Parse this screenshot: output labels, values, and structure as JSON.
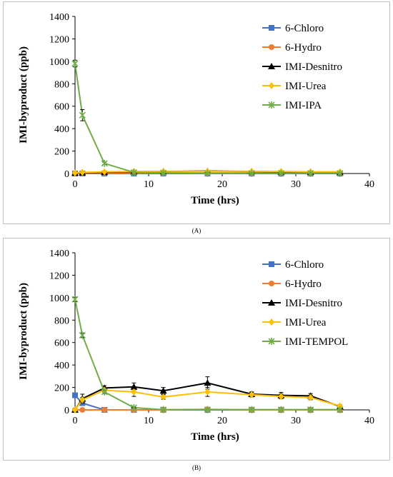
{
  "captions": [
    "(A)",
    "(B)"
  ],
  "chart_data": [
    {
      "type": "line",
      "xlabel": "Time (hrs)",
      "ylabel": "IMI-byproduct (ppb)",
      "xlim": [
        0,
        40
      ],
      "ylim": [
        0,
        1400
      ],
      "xticks": [
        0,
        10,
        20,
        30,
        40
      ],
      "yticks": [
        0,
        200,
        400,
        600,
        800,
        1000,
        1200,
        1400
      ],
      "grid": false,
      "legend": "top-right",
      "series": [
        {
          "name": "6-Chloro",
          "color": "#4472c4",
          "marker": "square",
          "x": [
            0,
            1,
            4,
            8,
            12,
            18,
            24,
            28,
            32,
            36
          ],
          "y": [
            0,
            0,
            0,
            0,
            0,
            0,
            0,
            0,
            0,
            0
          ]
        },
        {
          "name": "6-Hydro",
          "color": "#ed7d31",
          "marker": "circle",
          "x": [
            0,
            1,
            4,
            8,
            12,
            18,
            24,
            28,
            32,
            36
          ],
          "y": [
            0,
            2,
            3,
            5,
            5,
            5,
            5,
            5,
            5,
            5
          ]
        },
        {
          "name": "IMI-Desnitro",
          "color": "#000000",
          "marker": "triangle",
          "x": [
            0,
            1,
            4,
            8,
            12,
            18,
            24,
            28,
            32,
            36
          ],
          "y": [
            5,
            8,
            12,
            15,
            18,
            22,
            18,
            15,
            12,
            10
          ]
        },
        {
          "name": "IMI-Urea",
          "color": "#ffc000",
          "marker": "diamond",
          "x": [
            0,
            1,
            4,
            8,
            12,
            18,
            24,
            28,
            32,
            36
          ],
          "y": [
            5,
            10,
            15,
            18,
            20,
            20,
            20,
            18,
            15,
            15
          ]
        },
        {
          "name": "IMI-IPA",
          "color": "#70ad47",
          "marker": "star",
          "x": [
            0,
            1,
            4,
            8,
            12,
            18,
            24,
            28,
            32,
            36
          ],
          "y": [
            980,
            520,
            90,
            10,
            5,
            2,
            2,
            2,
            2,
            2
          ],
          "err": [
            30,
            50,
            10,
            0,
            0,
            0,
            0,
            0,
            0,
            0
          ]
        }
      ]
    },
    {
      "type": "line",
      "xlabel": "Time (hrs)",
      "ylabel": "IMI-byproduct (ppb)",
      "xlim": [
        0,
        40
      ],
      "ylim": [
        0,
        1400
      ],
      "xticks": [
        0,
        10,
        20,
        30,
        40
      ],
      "yticks": [
        0,
        200,
        400,
        600,
        800,
        1000,
        1200,
        1400
      ],
      "grid": false,
      "legend": "top-right",
      "series": [
        {
          "name": "6-Chloro",
          "color": "#4472c4",
          "marker": "square",
          "x": [
            0,
            1,
            4,
            8,
            12,
            18,
            24,
            28,
            32,
            36
          ],
          "y": [
            130,
            60,
            0,
            0,
            0,
            0,
            0,
            0,
            0,
            0
          ]
        },
        {
          "name": "6-Hydro",
          "color": "#ed7d31",
          "marker": "circle",
          "x": [
            0,
            1,
            4,
            8,
            12,
            18,
            24,
            28,
            32,
            36
          ],
          "y": [
            0,
            0,
            0,
            0,
            0,
            5,
            0,
            0,
            0,
            0
          ]
        },
        {
          "name": "IMI-Desnitro",
          "color": "#000000",
          "marker": "triangle",
          "x": [
            0,
            1,
            4,
            8,
            12,
            18,
            24,
            28,
            32,
            36
          ],
          "y": [
            0,
            100,
            195,
            205,
            170,
            240,
            140,
            130,
            125,
            30
          ],
          "err": [
            0,
            40,
            20,
            35,
            30,
            55,
            20,
            25,
            20,
            10
          ]
        },
        {
          "name": "IMI-Urea",
          "color": "#ffc000",
          "marker": "diamond",
          "x": [
            0,
            1,
            4,
            8,
            12,
            18,
            24,
            28,
            32,
            36
          ],
          "y": [
            0,
            90,
            175,
            160,
            115,
            160,
            135,
            120,
            110,
            35
          ],
          "err": [
            0,
            20,
            15,
            40,
            20,
            40,
            20,
            20,
            20,
            10
          ]
        },
        {
          "name": "IMI-TEMPOL",
          "color": "#70ad47",
          "marker": "star",
          "x": [
            0,
            1,
            4,
            8,
            12,
            18,
            24,
            28,
            32,
            36
          ],
          "y": [
            985,
            665,
            160,
            20,
            2,
            2,
            2,
            2,
            2,
            2
          ],
          "err": [
            20,
            20,
            15,
            5,
            0,
            0,
            0,
            0,
            0,
            0
          ]
        }
      ]
    }
  ]
}
